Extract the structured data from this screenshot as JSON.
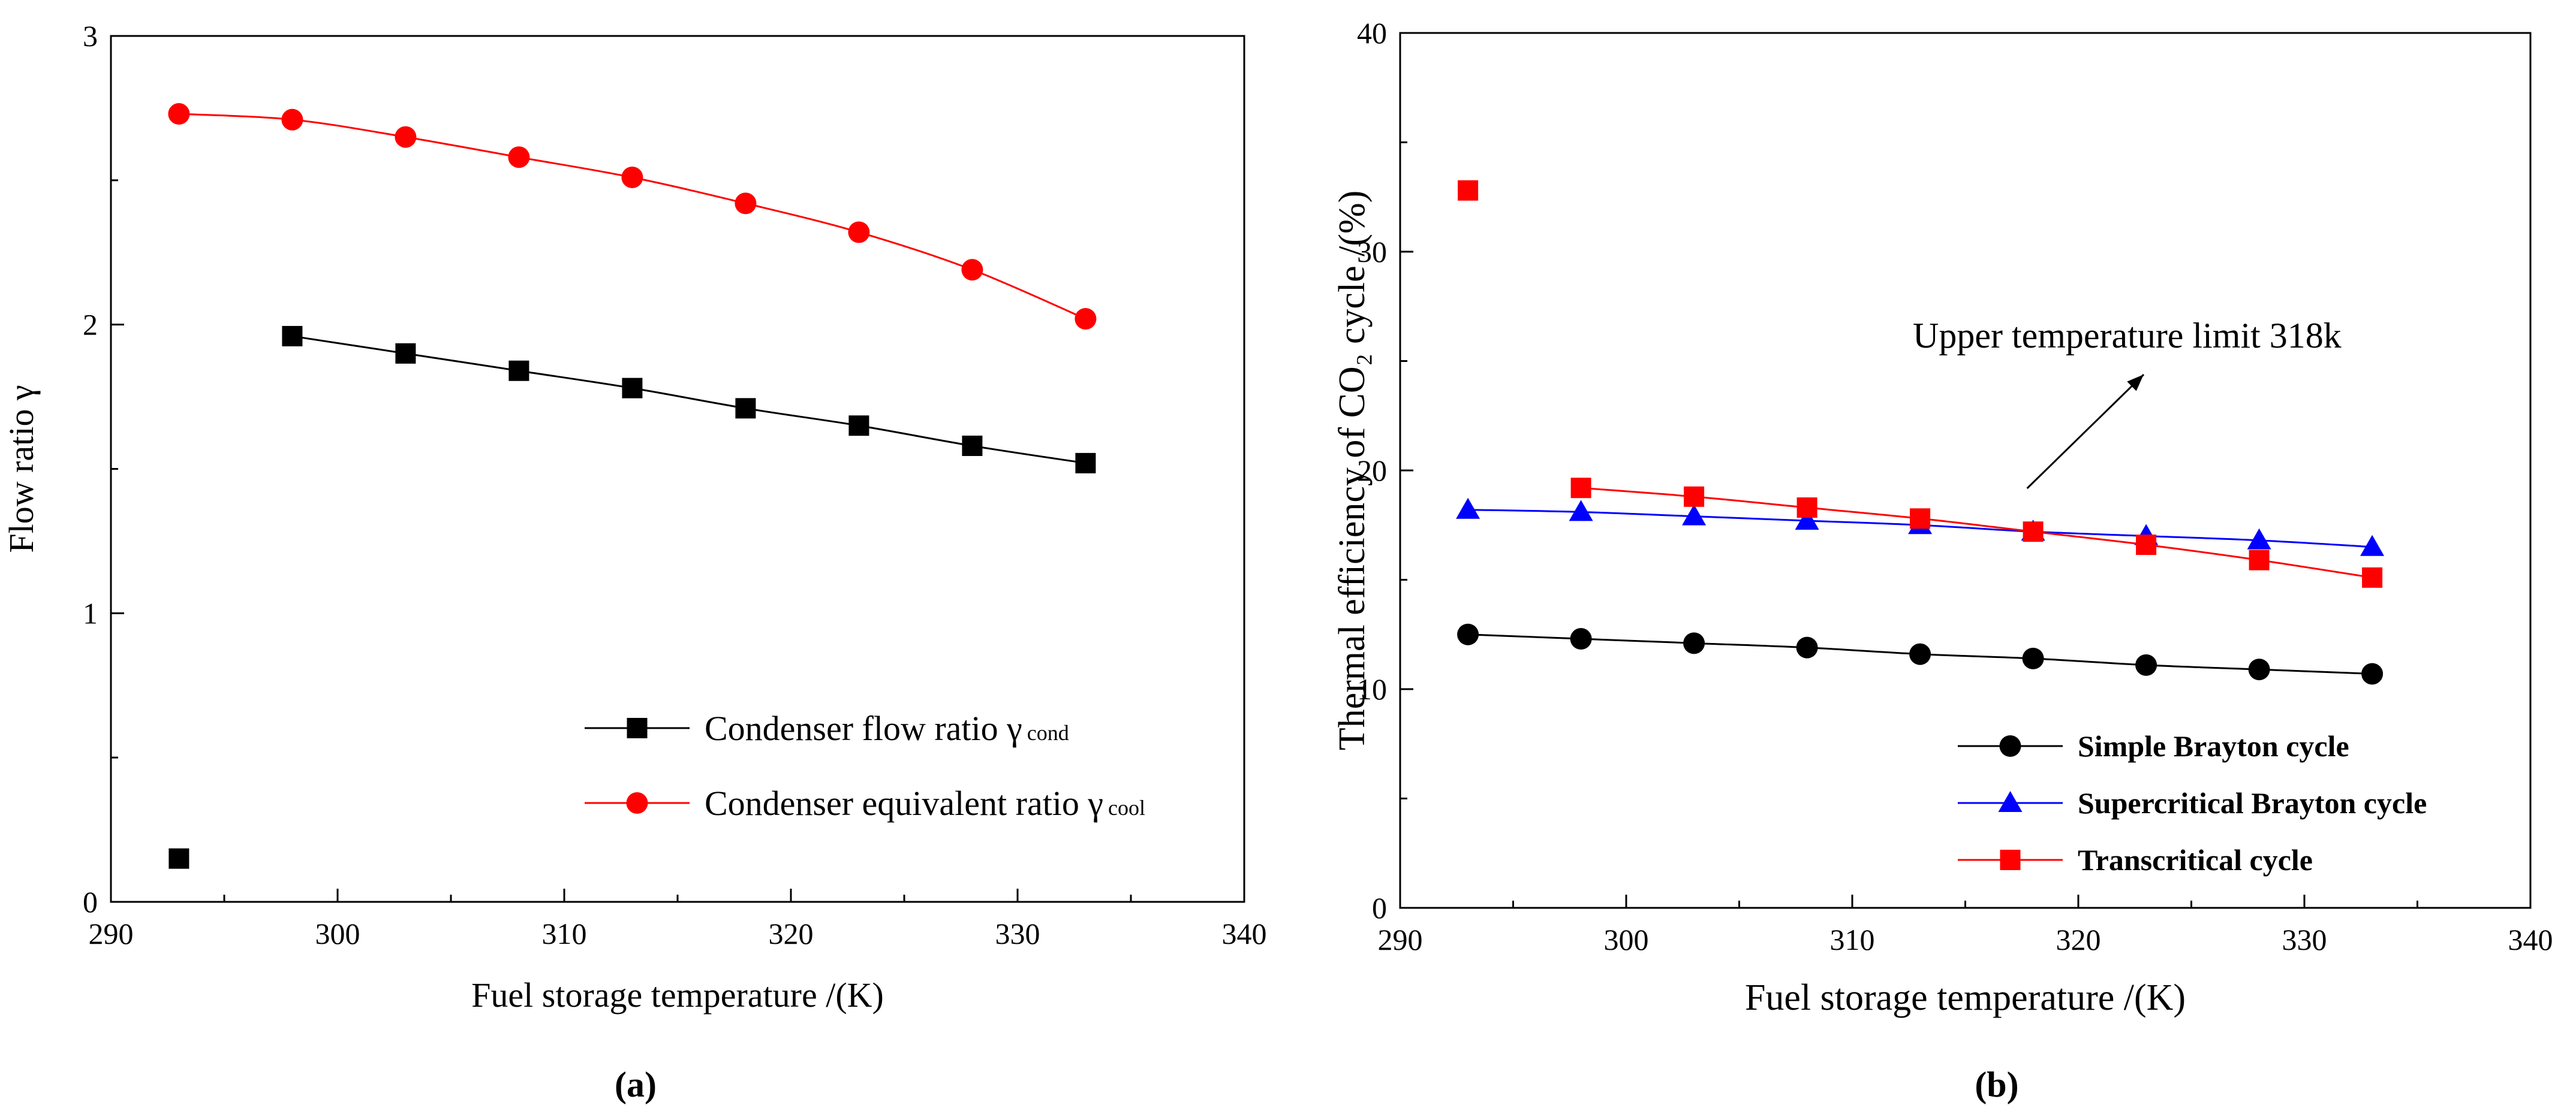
{
  "chart_data": [
    {
      "panel": "a",
      "type": "line",
      "caption": "(a)",
      "xlabel": "Fuel storage temperature /(K)",
      "ylabel": "Flow ratio γ",
      "xlim": [
        290,
        340
      ],
      "ylim": [
        0,
        3
      ],
      "xticks": [
        290,
        300,
        310,
        320,
        330,
        340
      ],
      "yticks": [
        0,
        1,
        2,
        3
      ],
      "legend_position": "bottom-right",
      "series": [
        {
          "name": "Condenser flow ratio γ cond",
          "legend_main": "Condenser flow ratio γ",
          "legend_sub": "cond",
          "color": "#000000",
          "marker": "square",
          "line": true,
          "x": [
            298,
            303,
            308,
            313,
            318,
            323,
            328,
            333
          ],
          "y": [
            1.96,
            1.9,
            1.84,
            1.78,
            1.71,
            1.65,
            1.58,
            1.52
          ]
        },
        {
          "name": "Condenser equivalent ratio γ cool",
          "legend_main": "Condenser equivalent ratio γ",
          "legend_sub": "cool",
          "color": "#ff0000",
          "marker": "circle",
          "line": true,
          "x": [
            293,
            298,
            303,
            308,
            313,
            318,
            323,
            328,
            333
          ],
          "y": [
            2.73,
            2.71,
            2.65,
            2.58,
            2.51,
            2.42,
            2.32,
            2.19,
            2.02
          ]
        }
      ],
      "extra_points": [
        {
          "x": 293,
          "y": 0.15,
          "marker": "square",
          "color": "#000000"
        }
      ]
    },
    {
      "panel": "b",
      "type": "line",
      "caption": "(b)",
      "xlabel": "Fuel storage temperature /(K)",
      "ylabel": "Thermal efficiency of CO₂ cycle /(%)",
      "xlim": [
        290,
        340
      ],
      "ylim": [
        0,
        40
      ],
      "xticks": [
        290,
        300,
        310,
        320,
        330,
        340
      ],
      "yticks": [
        0,
        10,
        20,
        30,
        40
      ],
      "legend_position": "bottom-right",
      "annotation": {
        "text": "Upper temperature limit 318k",
        "points_to_x": 318
      },
      "series": [
        {
          "name": "Simple Brayton cycle",
          "color": "#000000",
          "marker": "circle",
          "line": true,
          "x": [
            293,
            298,
            303,
            308,
            313,
            318,
            323,
            328,
            333
          ],
          "y": [
            12.5,
            12.3,
            12.1,
            11.9,
            11.6,
            11.4,
            11.1,
            10.9,
            10.7
          ]
        },
        {
          "name": "Supercritical Brayton cycle",
          "color": "#0000ff",
          "marker": "triangle",
          "line": true,
          "x": [
            293,
            298,
            303,
            308,
            313,
            318,
            323,
            328,
            333
          ],
          "y": [
            18.2,
            18.1,
            17.9,
            17.7,
            17.5,
            17.2,
            17.0,
            16.8,
            16.5
          ]
        },
        {
          "name": "Transcritical cycle",
          "color": "#ff0000",
          "marker": "square",
          "line": true,
          "x": [
            298,
            303,
            308,
            313,
            318,
            323,
            328,
            333
          ],
          "y": [
            19.2,
            18.8,
            18.3,
            17.8,
            17.2,
            16.6,
            15.9,
            15.1
          ]
        }
      ],
      "extra_points": [
        {
          "x": 293,
          "y": 32.8,
          "marker": "square",
          "color": "#ff0000"
        }
      ]
    }
  ]
}
